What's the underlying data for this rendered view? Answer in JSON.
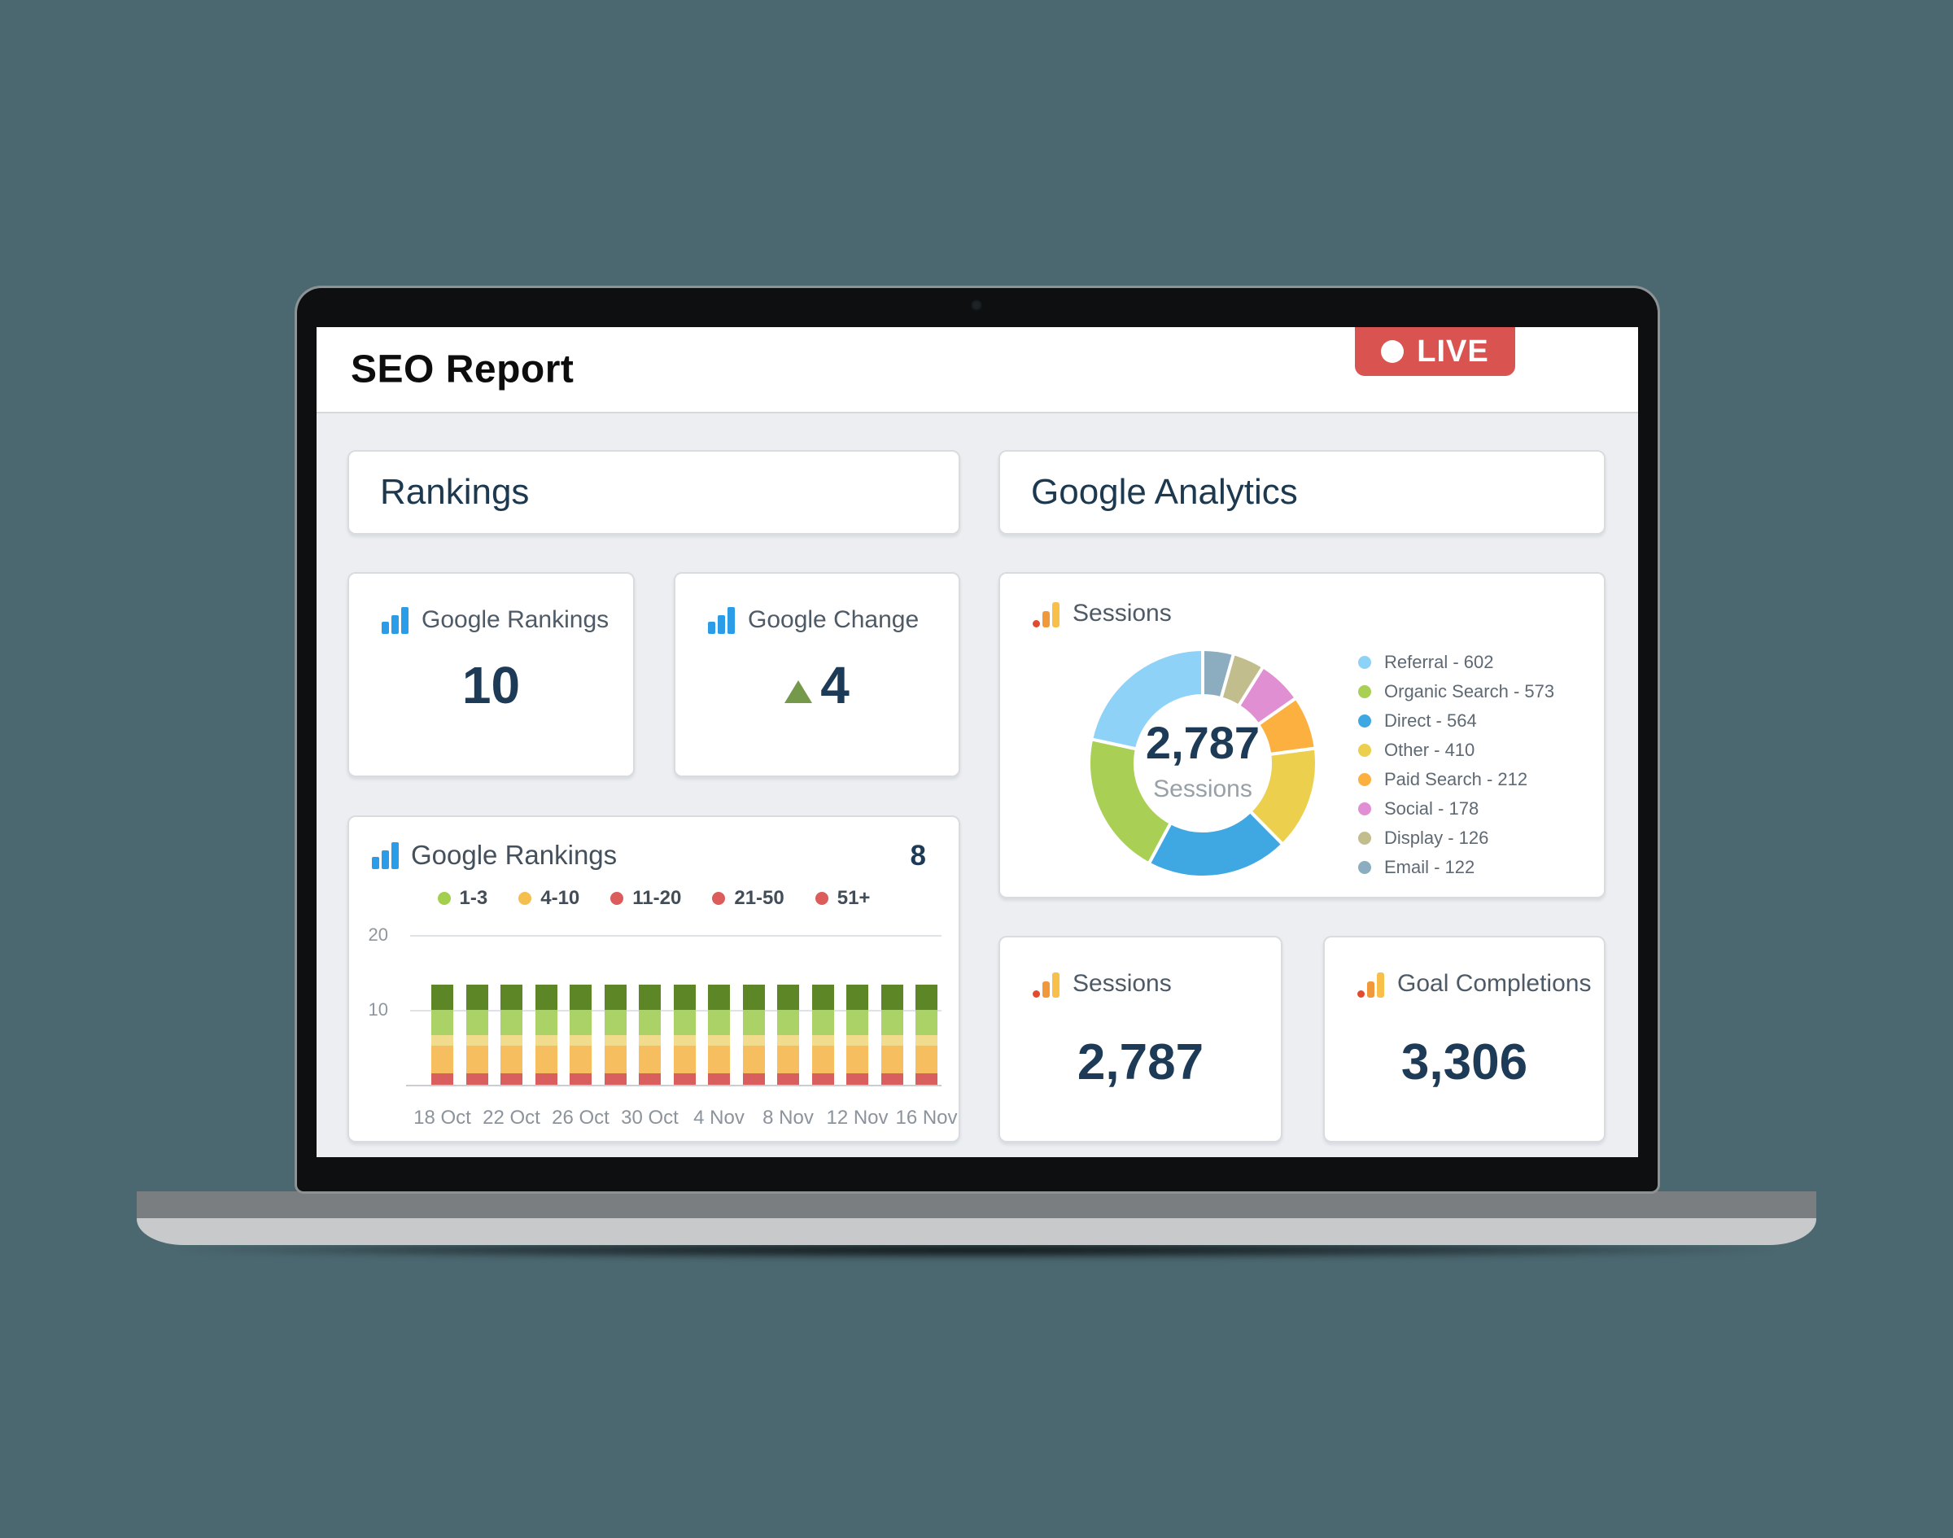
{
  "app": {
    "title": "SEO Report",
    "live_badge": "LIVE"
  },
  "sections": {
    "left": "Rankings",
    "right": "Google Analytics"
  },
  "stat_cards": {
    "google_rankings": {
      "label": "Google Rankings",
      "value": "10"
    },
    "google_change": {
      "label": "Google Change",
      "value": "4",
      "direction": "up"
    },
    "sessions": {
      "label": "Sessions",
      "value": "2,787"
    },
    "goal_completions": {
      "label": "Goal Completions",
      "value": "3,306"
    }
  },
  "colors": {
    "background": "#4b6770",
    "content_bg": "#eceef1",
    "accent_navy": "#1d3a56",
    "live_red": "#d95450",
    "rankings_icon_blue": "#2b9ce8",
    "ga_icon_orange": "#f0983a"
  },
  "chart_data": [
    {
      "type": "bar",
      "title": "Google Rankings",
      "corner_value": "8",
      "stacked": true,
      "bars_count": 15,
      "ylim": [
        0,
        20
      ],
      "y_ticks": [
        10,
        20
      ],
      "grid": true,
      "legend_position": "top-center",
      "legend": [
        {
          "label": "1-3",
          "color": "#a3ce4e"
        },
        {
          "label": "4-10",
          "color": "#f5bf4f"
        },
        {
          "label": "11-20",
          "color": "#dc5b5b"
        },
        {
          "label": "21-50",
          "color": "#dc5b5b"
        },
        {
          "label": "51+",
          "color": "#dc5b5b"
        }
      ],
      "x_tick_labels": [
        "18 Oct",
        "22 Oct",
        "26 Oct",
        "30 Oct",
        "4 Nov",
        "8 Nov",
        "12 Nov",
        "16 Nov"
      ],
      "x_label_under_every_nth_bar": 2,
      "series_stack_order": "bottom-to-top",
      "series": [
        {
          "name": "51+",
          "color": "#d95f5e",
          "values": [
            1.5,
            1.5,
            1.5,
            1.5,
            1.5,
            1.5,
            1.5,
            1.5,
            1.5,
            1.5,
            1.5,
            1.5,
            1.5,
            1.5,
            1.5
          ]
        },
        {
          "name": "21-50",
          "color": "#f6be5e",
          "values": [
            3.7,
            3.7,
            3.7,
            3.7,
            3.7,
            3.7,
            3.7,
            3.7,
            3.7,
            3.7,
            3.7,
            3.7,
            3.7,
            3.7,
            3.7
          ]
        },
        {
          "name": "11-20",
          "color": "#f1dc8e",
          "values": [
            1.4,
            1.4,
            1.4,
            1.4,
            1.4,
            1.4,
            1.4,
            1.4,
            1.4,
            1.4,
            1.4,
            1.4,
            1.4,
            1.4,
            1.4
          ]
        },
        {
          "name": "4-10",
          "color": "#aad266",
          "values": [
            3.4,
            3.4,
            3.4,
            3.4,
            3.4,
            3.4,
            3.4,
            3.4,
            3.4,
            3.4,
            3.4,
            3.4,
            3.4,
            3.4,
            3.4
          ]
        },
        {
          "name": "1-3",
          "color": "#5d8727",
          "values": [
            3.4,
            3.4,
            3.4,
            3.4,
            3.4,
            3.4,
            3.4,
            3.4,
            3.4,
            3.4,
            3.4,
            3.4,
            3.4,
            3.4,
            3.4
          ]
        }
      ]
    },
    {
      "type": "donut",
      "title": "Sessions",
      "center": {
        "value": "2,787",
        "label": "Sessions"
      },
      "total": 2787,
      "legend_separator": " - ",
      "legend_position": "right",
      "draw_order": "reverse of legend order, clockwise from 12 o'clock",
      "slices": [
        {
          "label": "Referral",
          "value": 602,
          "color": "#8fd2f7"
        },
        {
          "label": "Organic Search",
          "value": 573,
          "color": "#a9cf55"
        },
        {
          "label": "Direct",
          "value": 564,
          "color": "#3fa7e1"
        },
        {
          "label": "Other",
          "value": 410,
          "color": "#ebcf4d"
        },
        {
          "label": "Paid Search",
          "value": 212,
          "color": "#fbb040"
        },
        {
          "label": "Social",
          "value": 178,
          "color": "#e18fd3"
        },
        {
          "label": "Display",
          "value": 126,
          "color": "#c1bd8d"
        },
        {
          "label": "Email",
          "value": 122,
          "color": "#8badbf"
        }
      ]
    }
  ]
}
